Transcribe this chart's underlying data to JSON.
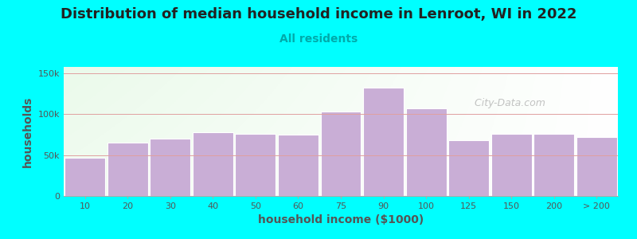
{
  "title": "Distribution of median household income in Lenroot, WI in 2022",
  "subtitle": "All residents",
  "xlabel": "household income ($1000)",
  "ylabel": "households",
  "background_color": "#00FFFF",
  "bar_color": "#c9aed6",
  "bar_edge_color": "#ffffff",
  "categories": [
    "10",
    "20",
    "30",
    "40",
    "50",
    "60",
    "75",
    "90",
    "100",
    "125",
    "150",
    "200",
    "> 200"
  ],
  "values": [
    47000,
    65000,
    70000,
    78000,
    76000,
    75000,
    103000,
    133000,
    107000,
    68000,
    76000,
    76000,
    72000
  ],
  "yticks": [
    0,
    50000,
    100000,
    150000
  ],
  "ytick_labels": [
    "0",
    "50k",
    "100k",
    "150k"
  ],
  "ylim": [
    0,
    158000
  ],
  "title_fontsize": 13,
  "subtitle_fontsize": 10,
  "axis_label_fontsize": 10,
  "watermark_text": "  City-Data.com",
  "subtitle_color": "#00aaaa",
  "title_color": "#222222",
  "grid_color": "#e0a0a0"
}
